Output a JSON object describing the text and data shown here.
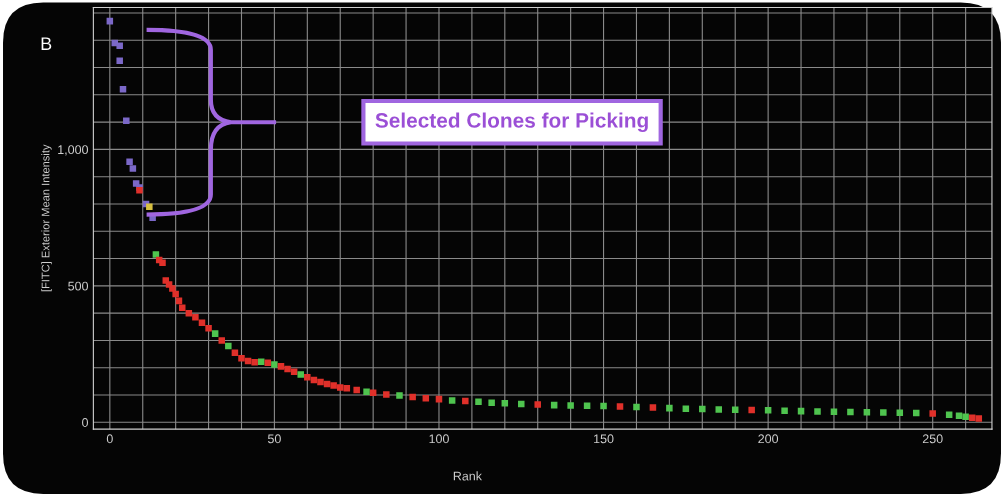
{
  "chart_data": {
    "type": "scatter",
    "xlabel": "Rank",
    "ylabel": "[FITC] Exterior Mean Intensity",
    "annotations": [
      "B",
      "Selected Clones for Picking"
    ],
    "x": [
      0,
      1.5,
      3,
      3,
      4,
      5,
      6,
      7,
      8,
      9,
      9,
      11,
      12,
      13,
      14,
      15,
      16,
      17,
      18,
      19,
      20,
      21,
      22,
      24,
      26,
      28,
      30,
      32,
      34,
      36,
      38,
      40,
      42,
      44,
      46,
      48,
      50,
      52,
      54,
      56,
      58,
      60,
      62,
      64,
      66,
      68,
      70,
      72,
      75,
      78,
      80,
      84,
      88,
      92,
      96,
      100,
      104,
      108,
      112,
      116,
      120,
      125,
      130,
      135,
      140,
      145,
      150,
      155,
      160,
      165,
      170,
      175,
      180,
      185,
      190,
      195,
      200,
      205,
      210,
      215,
      220,
      225,
      230,
      235,
      240,
      245,
      250,
      255,
      258,
      260,
      262,
      264
    ],
    "values": [
      1470,
      1390,
      1380,
      1325,
      1220,
      1105,
      955,
      930,
      875,
      860,
      850,
      800,
      790,
      750,
      615,
      595,
      585,
      520,
      505,
      490,
      470,
      445,
      420,
      400,
      385,
      365,
      345,
      325,
      300,
      280,
      255,
      235,
      225,
      220,
      222,
      218,
      212,
      205,
      195,
      185,
      175,
      165,
      155,
      148,
      140,
      135,
      128,
      125,
      118,
      112,
      108,
      102,
      98,
      93,
      88,
      85,
      80,
      78,
      75,
      72,
      70,
      67,
      65,
      63,
      62,
      61,
      60,
      58,
      56,
      54,
      52,
      50,
      49,
      47,
      46,
      45,
      44,
      42,
      41,
      40,
      39,
      38,
      37,
      36,
      35,
      34,
      32,
      28,
      24,
      20,
      17,
      14
    ],
    "colors": [
      "#7b68c8",
      "#7b68c8",
      "#7b68c8",
      "#7b68c8",
      "#7b68c8",
      "#7b68c8",
      "#7b68c8",
      "#7b68c8",
      "#7b68c8",
      "#7b68c8",
      "#e0302a",
      "#7b68c8",
      "#d8c040",
      "#7b68c8",
      "#4fc44f",
      "#e0302a",
      "#e0302a",
      "#e0302a",
      "#e0302a",
      "#e0302a",
      "#e0302a",
      "#e0302a",
      "#e0302a",
      "#e0302a",
      "#e0302a",
      "#e0302a",
      "#e0302a",
      "#4fc44f",
      "#e0302a",
      "#4fc44f",
      "#e0302a",
      "#e0302a",
      "#e0302a",
      "#e0302a",
      "#4fc44f",
      "#e0302a",
      "#4fc44f",
      "#e0302a",
      "#e0302a",
      "#e0302a",
      "#4fc44f",
      "#e0302a",
      "#e0302a",
      "#e0302a",
      "#e0302a",
      "#e0302a",
      "#e0302a",
      "#e0302a",
      "#e0302a",
      "#4fc44f",
      "#e0302a",
      "#e0302a",
      "#4fc44f",
      "#e0302a",
      "#e0302a",
      "#e0302a",
      "#4fc44f",
      "#e0302a",
      "#4fc44f",
      "#4fc44f",
      "#4fc44f",
      "#4fc44f",
      "#e0302a",
      "#4fc44f",
      "#4fc44f",
      "#4fc44f",
      "#4fc44f",
      "#e0302a",
      "#4fc44f",
      "#e0302a",
      "#4fc44f",
      "#4fc44f",
      "#4fc44f",
      "#4fc44f",
      "#4fc44f",
      "#e0302a",
      "#4fc44f",
      "#4fc44f",
      "#4fc44f",
      "#4fc44f",
      "#4fc44f",
      "#4fc44f",
      "#4fc44f",
      "#4fc44f",
      "#4fc44f",
      "#4fc44f",
      "#e0302a",
      "#4fc44f",
      "#4fc44f",
      "#4fc44f",
      "#e0302a",
      "#e0302a"
    ],
    "marker": "square",
    "grid": true,
    "xlim": [
      -5,
      268
    ],
    "ylim": [
      -25,
      1520
    ],
    "xticks": [
      0,
      {
        "value": 10,
        "label": null
      },
      {
        "value": 20,
        "label": null
      },
      {
        "value": 30,
        "label": null
      },
      {
        "value": 40,
        "label": null
      },
      50,
      {
        "value": 60,
        "label": null
      },
      {
        "value": 70,
        "label": null
      },
      {
        "value": 80,
        "label": null
      },
      {
        "value": 90,
        "label": null
      },
      100,
      {
        "value": 110,
        "label": null
      },
      {
        "value": 120,
        "label": null
      },
      {
        "value": 130,
        "label": null
      },
      {
        "value": 140,
        "label": null
      },
      150,
      {
        "value": 160,
        "label": null
      },
      {
        "value": 170,
        "label": null
      },
      {
        "value": 180,
        "label": null
      },
      {
        "value": 190,
        "label": null
      },
      200,
      {
        "value": 210,
        "label": null
      },
      {
        "value": 220,
        "label": null
      },
      {
        "value": 230,
        "label": null
      },
      {
        "value": 240,
        "label": null
      },
      250,
      {
        "value": 260,
        "label": null
      }
    ],
    "yticks": [
      0,
      {
        "value": 100,
        "label": null
      },
      {
        "value": 200,
        "label": null
      },
      {
        "value": 300,
        "label": null
      },
      {
        "value": 400,
        "label": null
      },
      500,
      {
        "value": 600,
        "label": null
      },
      {
        "value": 700,
        "label": null
      },
      {
        "value": 800,
        "label": null
      },
      {
        "value": 900,
        "label": null
      },
      {
        "value": 1000,
        "label": "1,000"
      },
      {
        "value": 1100,
        "label": null
      },
      {
        "value": 1200,
        "label": null
      },
      {
        "value": 1300,
        "label": null
      },
      {
        "value": 1400,
        "label": null
      },
      {
        "value": 1500,
        "label": null
      }
    ]
  }
}
